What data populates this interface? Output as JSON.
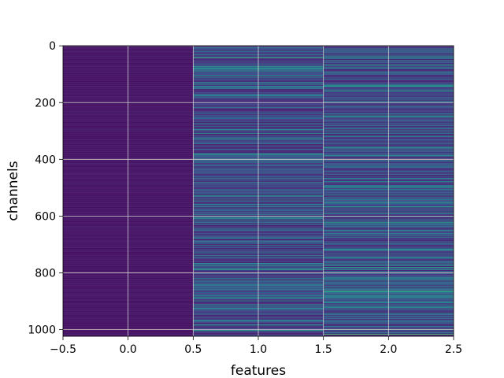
{
  "chart_data": {
    "type": "heatmap",
    "title": "",
    "xlabel": "features",
    "ylabel": "channels",
    "xlim": [
      -0.5,
      2.5
    ],
    "ylim": [
      1023.5,
      -0.5
    ],
    "x_ticks": [
      -0.5,
      0.0,
      0.5,
      1.0,
      1.5,
      2.0,
      2.5
    ],
    "x_tick_labels": [
      "−0.5",
      "0.0",
      "0.5",
      "1.0",
      "1.5",
      "2.0",
      "2.5"
    ],
    "y_ticks": [
      0,
      200,
      400,
      600,
      800,
      1000
    ],
    "y_tick_labels": [
      "0",
      "200",
      "400",
      "600",
      "800",
      "1000"
    ],
    "n_rows": 1024,
    "n_cols": 3,
    "colormap": "viridis",
    "grid": true,
    "grid_color": "#d0d0d0",
    "column_value_profiles": [
      {
        "column": 0,
        "base": 0.04,
        "spread": 0.03
      },
      {
        "column": 1,
        "base": 0.1,
        "spread": 0.42
      },
      {
        "column": 2,
        "base": 0.1,
        "spread": 0.42
      }
    ]
  }
}
